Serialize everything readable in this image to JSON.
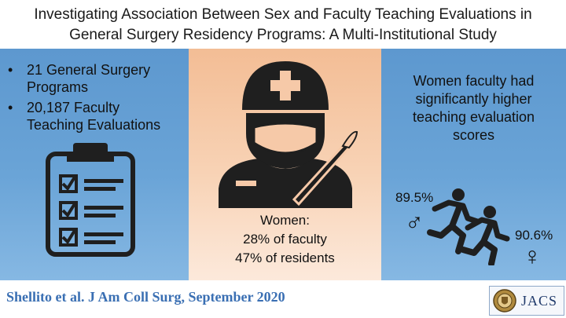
{
  "title": {
    "line1": "Investigating Association Between Sex and Faculty Teaching Evaluations in",
    "line2": "General Surgery Residency Programs: A Multi-Institutional Study"
  },
  "left_panel": {
    "bullets": [
      {
        "marker": "•",
        "line1": "21 General Surgery",
        "line2": "Programs"
      },
      {
        "marker": "•",
        "line1": "20,187 Faculty",
        "line2": "Teaching Evaluations"
      }
    ],
    "icon": "clipboard-checklist-icon"
  },
  "middle_panel": {
    "icon": "surgeon-with-scalpel-icon",
    "heading": "Women:",
    "stat1": "28% of faculty",
    "stat2": "47% of residents"
  },
  "right_panel": {
    "text": [
      "Women faculty had",
      "significantly higher",
      "teaching evaluation",
      "scores"
    ],
    "male_score": "89.5%",
    "male_symbol": "♂",
    "female_score": "90.6%",
    "female_symbol": "♀",
    "icon": "running-people-icon"
  },
  "footer": {
    "citation": "Shellito et al. J Am Coll Surg, September 2020",
    "logo_text": "JACS",
    "logo_icon": "college-seal-icon"
  },
  "colors": {
    "side_panels": "#6aa4d7",
    "middle_panel": "#f8d3b6",
    "citation": "#3a6fb3",
    "icons": "#1f1f1f"
  }
}
